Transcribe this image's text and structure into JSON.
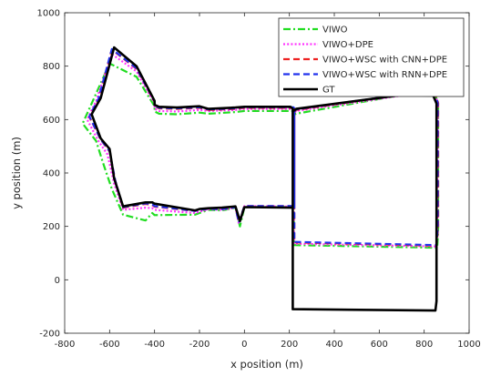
{
  "chart_data": {
    "type": "line",
    "title": "",
    "xlabel": "x position (m)",
    "ylabel": "y position (m)",
    "xlim": [
      -800,
      1000
    ],
    "ylim": [
      -200,
      1000
    ],
    "xticks": [
      -800,
      -600,
      -400,
      -200,
      0,
      200,
      400,
      600,
      800,
      1000
    ],
    "yticks": [
      -200,
      0,
      200,
      400,
      600,
      800,
      1000
    ],
    "grid": false,
    "legend_position": "top-right",
    "series": [
      {
        "name": "VIWO",
        "color": "#22dd22",
        "dash": "dashdot",
        "x": [
          -160,
          -40,
          0,
          210,
          220,
          220,
          858,
          862,
          862,
          850,
          700,
          230,
          220,
          220,
          0,
          -20,
          -40,
          -100,
          -160,
          -200,
          -220,
          -400,
          -410,
          -440,
          -540,
          -590,
          -630,
          -660,
          -720,
          -680,
          -600,
          -480,
          -400,
          -400,
          -380,
          -300,
          -200,
          -160,
          -160
        ],
        "y": [
          622,
          628,
          632,
          632,
          628,
          130,
          120,
          190,
          660,
          690,
          692,
          622,
          618,
          272,
          272,
          200,
          270,
          260,
          262,
          250,
          244,
          242,
          250,
          222,
          244,
          340,
          440,
          520,
          585,
          660,
          810,
          760,
          650,
          630,
          622,
          620,
          626,
          622,
          622
        ]
      },
      {
        "name": "VIWO+DPE",
        "color": "#ff33ff",
        "dash": "dotted",
        "x": [
          -160,
          -40,
          0,
          215,
          220,
          220,
          855,
          858,
          860,
          850,
          700,
          230,
          218,
          218,
          0,
          -25,
          -40,
          -100,
          -160,
          -200,
          -220,
          -400,
          -410,
          -440,
          -540,
          -580,
          -610,
          -650,
          -700,
          -660,
          -590,
          -480,
          -400,
          -400,
          -380,
          -300,
          -200,
          -160,
          -160
        ],
        "y": [
          632,
          636,
          640,
          640,
          636,
          135,
          125,
          190,
          660,
          690,
          690,
          632,
          622,
          274,
          276,
          210,
          270,
          262,
          264,
          255,
          250,
          262,
          268,
          270,
          262,
          360,
          470,
          520,
          600,
          670,
          845,
          780,
          660,
          640,
          632,
          630,
          636,
          632,
          632
        ]
      },
      {
        "name": "VIWO+WSC with CNN+DPE",
        "color": "#ee2222",
        "dash": "dashed",
        "x": [
          -160,
          -40,
          0,
          218,
          222,
          222,
          855,
          862,
          862,
          852,
          700,
          230,
          222,
          222,
          0,
          -25,
          -40,
          -100,
          -160,
          -200,
          -220,
          -400,
          -410,
          -440,
          -540,
          -575,
          -600,
          -640,
          -690,
          -650,
          -590,
          -480,
          -400,
          -400,
          -380,
          -300,
          -200,
          -160,
          -160
        ],
        "y": [
          636,
          640,
          644,
          644,
          640,
          140,
          128,
          195,
          662,
          692,
          694,
          636,
          628,
          276,
          276,
          215,
          272,
          265,
          266,
          262,
          258,
          274,
          280,
          284,
          270,
          370,
          480,
          525,
          610,
          675,
          862,
          790,
          666,
          650,
          642,
          640,
          644,
          636,
          636
        ]
      },
      {
        "name": "VIWO+WSC with RNN+DPE",
        "color": "#2233ee",
        "dash": "dashed",
        "x": [
          -160,
          -40,
          0,
          218,
          222,
          222,
          855,
          860,
          860,
          852,
          700,
          230,
          222,
          222,
          0,
          -25,
          -40,
          -100,
          -160,
          -200,
          -220,
          -400,
          -410,
          -440,
          -540,
          -575,
          -600,
          -640,
          -690,
          -650,
          -590,
          -480,
          -400,
          -400,
          -380,
          -300,
          -200,
          -160,
          -160
        ],
        "y": [
          638,
          642,
          646,
          646,
          642,
          142,
          130,
          195,
          662,
          692,
          694,
          638,
          630,
          276,
          276,
          215,
          272,
          265,
          266,
          262,
          258,
          276,
          282,
          286,
          272,
          372,
          482,
          526,
          612,
          677,
          864,
          792,
          668,
          652,
          644,
          642,
          646,
          638,
          638
        ]
      },
      {
        "name": "GT",
        "color": "#000000",
        "dash": "solid",
        "x": [
          -160,
          -40,
          0,
          205,
          215,
          215,
          850,
          855,
          855,
          840,
          700,
          230,
          215,
          215,
          0,
          -20,
          -40,
          -100,
          -160,
          -200,
          -220,
          -400,
          -410,
          -440,
          -540,
          -580,
          -600,
          -640,
          -680,
          -640,
          -580,
          -480,
          -400,
          -400,
          -380,
          -300,
          -200,
          -160,
          -160
        ],
        "y": [
          640,
          645,
          648,
          648,
          640,
          -110,
          -115,
          -80,
          660,
          690,
          692,
          640,
          630,
          270,
          272,
          220,
          275,
          270,
          268,
          265,
          260,
          285,
          290,
          290,
          275,
          380,
          490,
          530,
          620,
          680,
          870,
          800,
          670,
          655,
          648,
          645,
          650,
          640,
          640
        ]
      }
    ]
  }
}
